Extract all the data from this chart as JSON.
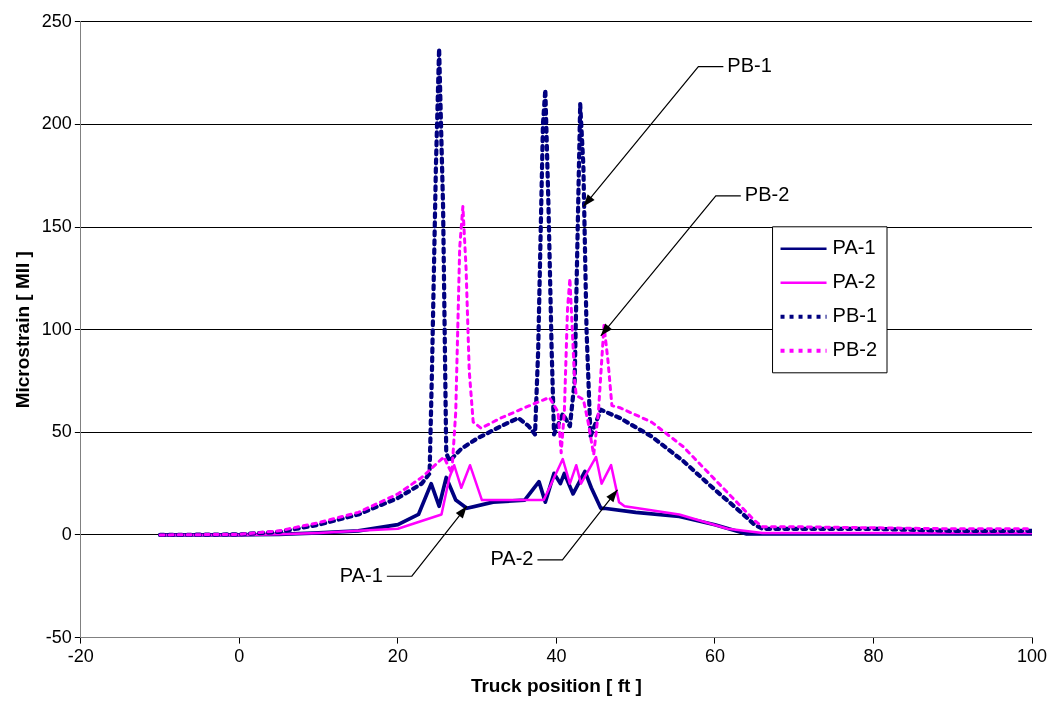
{
  "chart_data": {
    "type": "line",
    "xlabel": "Truck position [ ft ]",
    "ylabel": "Microstrain [ MII ]",
    "xlim": [
      -20,
      100
    ],
    "xticks": [
      -20,
      0,
      20,
      40,
      60,
      80,
      100
    ],
    "ylim": [
      -50,
      250
    ],
    "yticks": [
      -50,
      0,
      50,
      100,
      150,
      200,
      250
    ],
    "grid": "y",
    "legend": "right",
    "marker": "none",
    "series": [
      {
        "name": "PA-1",
        "color": "#000080",
        "line_style": "solid",
        "x": [
          -10,
          0,
          5,
          10,
          15,
          20,
          22.6,
          24.2,
          25.2,
          26.1,
          27.3,
          28.7,
          32,
          36,
          37.8,
          38.6,
          39.7,
          40.5,
          41,
          42.1,
          43.6,
          44.4,
          45.6,
          46,
          50,
          55.5,
          60,
          64,
          66,
          70,
          80,
          90,
          100
        ],
        "values": [
          0,
          0,
          0.3,
          1,
          2,
          5,
          10,
          25,
          14,
          28,
          17,
          13,
          16,
          17,
          26,
          16,
          30,
          25,
          30,
          20,
          31,
          23,
          13,
          13,
          11,
          9,
          5,
          0.5,
          0.5,
          0.5,
          0.5,
          0.5,
          0.5
        ]
      },
      {
        "name": "PA-2",
        "color": "#ff00ff",
        "line_style": "solid",
        "x": [
          -10,
          0,
          5,
          10,
          15,
          20,
          25.5,
          26.5,
          27.1,
          28,
          29.1,
          30.6,
          36.5,
          38.4,
          40.8,
          41.7,
          42.5,
          43.1,
          45,
          45.7,
          46.9,
          47.9,
          48.6,
          55.5,
          61.6,
          66,
          70,
          80,
          90,
          100
        ],
        "values": [
          0,
          0,
          0.3,
          1,
          2,
          3,
          10,
          28,
          34,
          23,
          34,
          17,
          17,
          17,
          37,
          25,
          34,
          25,
          38,
          25,
          34,
          16,
          14,
          10,
          3,
          1,
          1,
          1,
          1,
          1
        ]
      },
      {
        "name": "PB-1",
        "color": "#000080",
        "line_style": "dashed",
        "x": [
          -10,
          0,
          5,
          10,
          15,
          20,
          23,
          24,
          24.3,
          24.8,
          25.2,
          25.7,
          26.1,
          26.5,
          28,
          30,
          33,
          35.2,
          36.5,
          37.3,
          37.7,
          38.3,
          38.6,
          39,
          39.4,
          39.7,
          40.8,
          41.7,
          42.3,
          43,
          43.4,
          43.8,
          44.3,
          45.6,
          48,
          52,
          56,
          60,
          63,
          65,
          66,
          70,
          80,
          90,
          100
        ],
        "values": [
          0,
          0.3,
          1.5,
          5,
          10,
          18,
          25,
          30,
          80,
          180,
          237,
          160,
          40,
          36,
          42,
          47,
          53,
          57,
          53,
          49,
          90,
          200,
          217,
          160,
          90,
          49,
          59,
          53,
          75,
          210,
          180,
          100,
          48,
          61,
          57,
          48,
          36,
          22,
          12,
          5,
          3,
          3,
          3,
          2,
          2
        ]
      },
      {
        "name": "PB-2",
        "color": "#ff00ff",
        "line_style": "dashed",
        "x": [
          -10,
          0,
          5,
          10,
          15,
          20,
          23,
          25.8,
          26.8,
          27.3,
          27.8,
          28.2,
          28.6,
          29,
          29.5,
          30.5,
          33,
          36,
          39.1,
          40.2,
          40.6,
          41,
          41.4,
          41.7,
          42,
          42.3,
          42.5,
          43.4,
          44,
          44.7,
          45.3,
          46,
          46.5,
          47,
          48,
          52,
          56,
          60,
          63,
          65,
          66,
          70,
          80,
          90,
          100
        ],
        "values": [
          0,
          0.3,
          2,
          6,
          11,
          20,
          28,
          38,
          30,
          60,
          140,
          160,
          130,
          80,
          55,
          52,
          57,
          62,
          67,
          60,
          40,
          60,
          110,
          125,
          100,
          75,
          68,
          66,
          55,
          39,
          60,
          102,
          85,
          63,
          62,
          55,
          43,
          27,
          15,
          7,
          4,
          4,
          3.5,
          3,
          3
        ]
      }
    ],
    "annotations": [
      {
        "text": "PB-1",
        "x": 43.4,
        "y": 160
      },
      {
        "text": "PB-2",
        "x": 45.6,
        "y": 97
      },
      {
        "text": "PA-1",
        "x": 28.7,
        "y": 14
      },
      {
        "text": "PA-2",
        "x": 47.7,
        "y": 22
      }
    ]
  }
}
